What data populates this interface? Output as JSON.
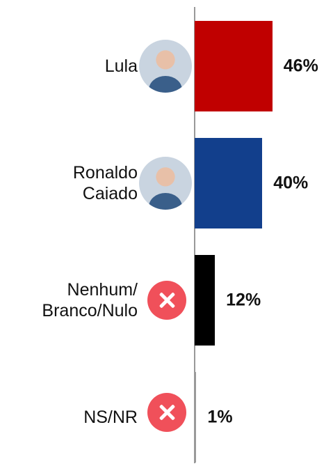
{
  "chart_data": {
    "type": "bar",
    "orientation": "horizontal",
    "categories": [
      "Lula",
      "Ronaldo\nCaiado",
      "Nenhum/\nBranco/Nulo",
      "NS/NR"
    ],
    "values": [
      46,
      40,
      12,
      1
    ],
    "value_labels": [
      "46%",
      "40%",
      "12%",
      "1%"
    ],
    "colors": [
      "#c00000",
      "#123f8c",
      "#000000",
      "#9a9a9a"
    ],
    "xlim": [
      0,
      100
    ]
  }
}
